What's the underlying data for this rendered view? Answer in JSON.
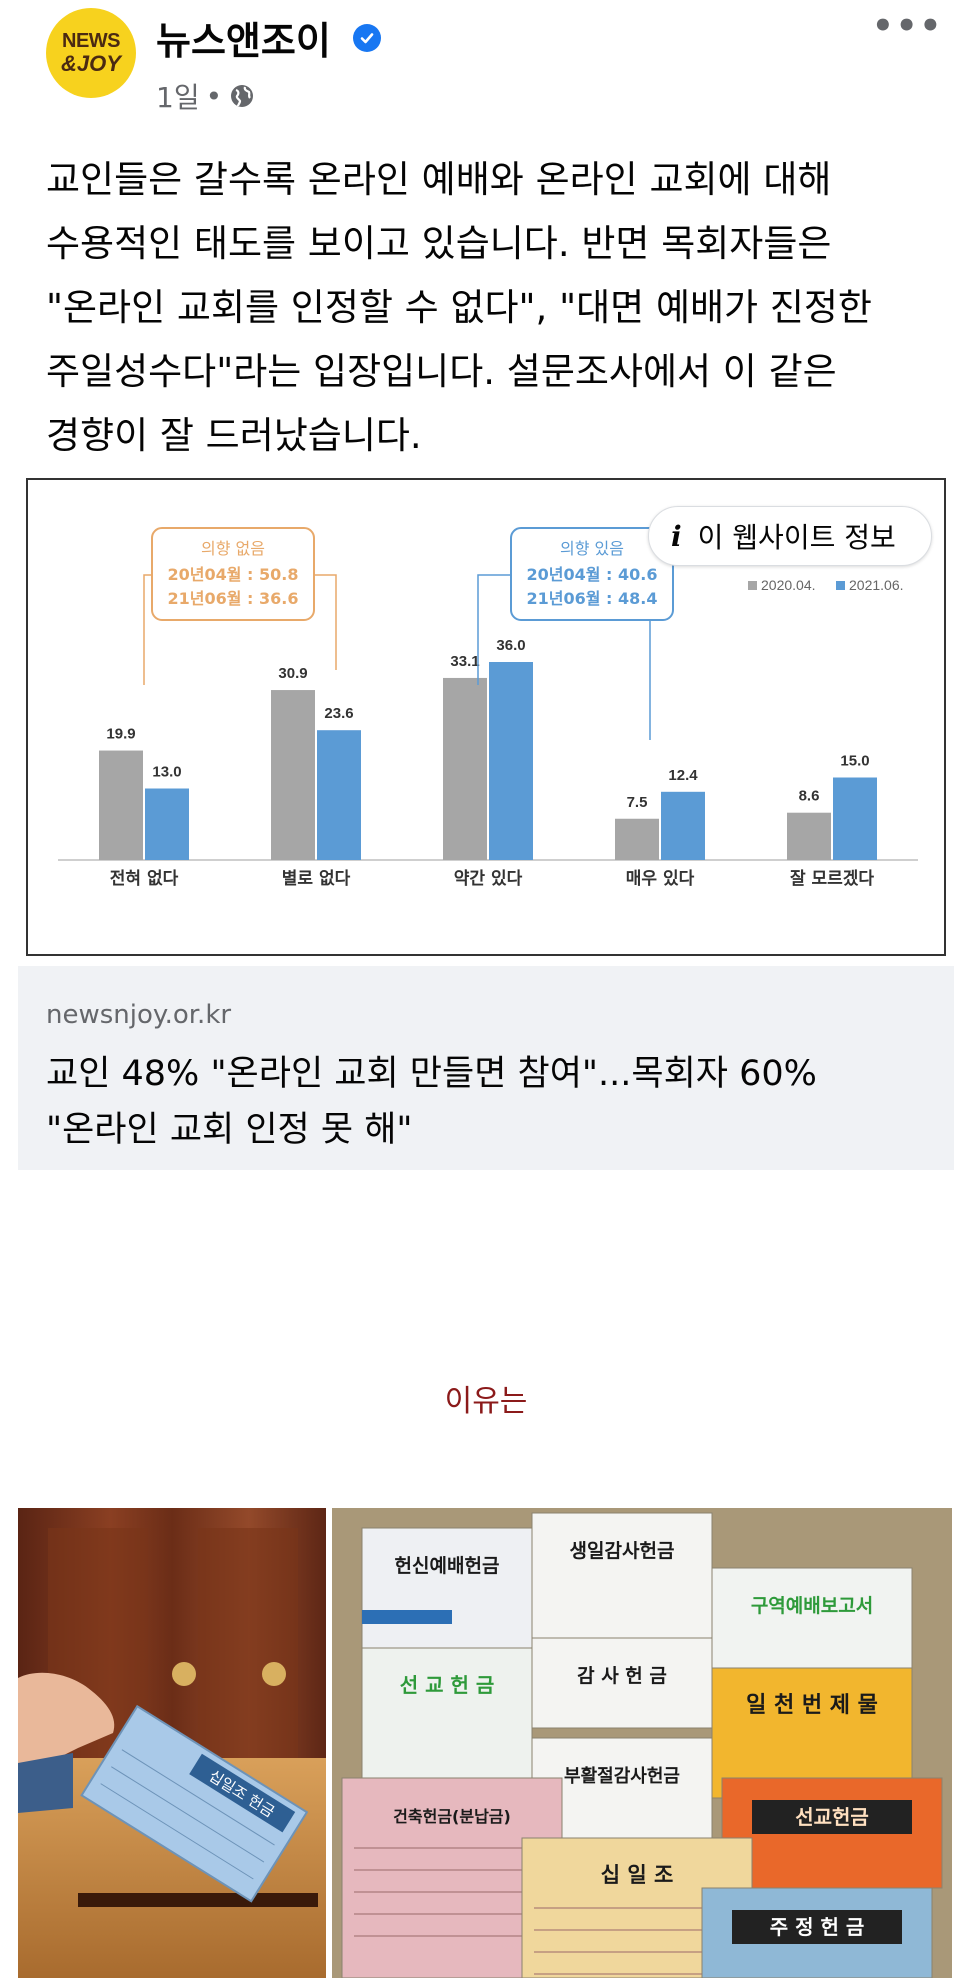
{
  "post": {
    "page_name": "뉴스앤조이",
    "avatar_line1": "NEWS",
    "avatar_line2": "&JOY",
    "time": "1일",
    "separator": "•",
    "text": "교인들은 갈수록 온라인 예배와 온라인 교회에 대해\n수용적인 태도를 보이고 있습니다. 반면 목회자들은\n\"온라인 교회를 인정할 수 없다\", \"대면 예배가 진정한\n주일성수다\"라는 입장입니다. 설문조사에서 이 같은\n경향이 잘 드러났습니다."
  },
  "info_button": {
    "icon": "info-icon",
    "label": "이 웹사이트 정보"
  },
  "link": {
    "domain": "newsnjoy.or.kr",
    "title": "교인 48% \"온라인 교회 만들면 참여\"...목회자 60%\n\"온라인 교회 인정 못 해\""
  },
  "caption": "이유는",
  "chart_data": {
    "type": "bar",
    "categories": [
      "전혀 없다",
      "별로 없다",
      "약간 있다",
      "매우 있다",
      "잘 모르겠다"
    ],
    "series": [
      {
        "name": "2020.04.",
        "color": "#a6a6a6",
        "values": [
          19.9,
          30.9,
          33.1,
          7.5,
          8.6
        ]
      },
      {
        "name": "2021.06.",
        "color": "#5b9bd5",
        "values": [
          13.0,
          23.6,
          36.0,
          12.4,
          15.0
        ]
      }
    ],
    "annotations": [
      {
        "title": "의향 없음",
        "line1": "20년04월 : 50.8",
        "line2": "21년06월 : 36.6",
        "color": "#e8a96a"
      },
      {
        "title": "의향 있음",
        "line1": "20년04월 : 40.6",
        "line2": "21년06월 : 48.4",
        "color": "#5b9bd5"
      }
    ],
    "legend_position": "top-right",
    "ylim": [
      0,
      40
    ]
  },
  "photos": {
    "left_slip": "십일조 헌금",
    "envelopes": [
      "헌신예배헌금",
      "생일감사헌금",
      "구역예배보고서",
      "감 사 헌 금",
      "선 교 헌 금",
      "일 천 번 제 물",
      "부활절감사헌금",
      "건축헌금(분납금)",
      "선교헌금",
      "십 일 조",
      "주 정 헌 금"
    ]
  },
  "colors": {
    "verified": "#1877f2",
    "caption": "#8b1a1a",
    "card_bg": "#f0f2f5"
  }
}
